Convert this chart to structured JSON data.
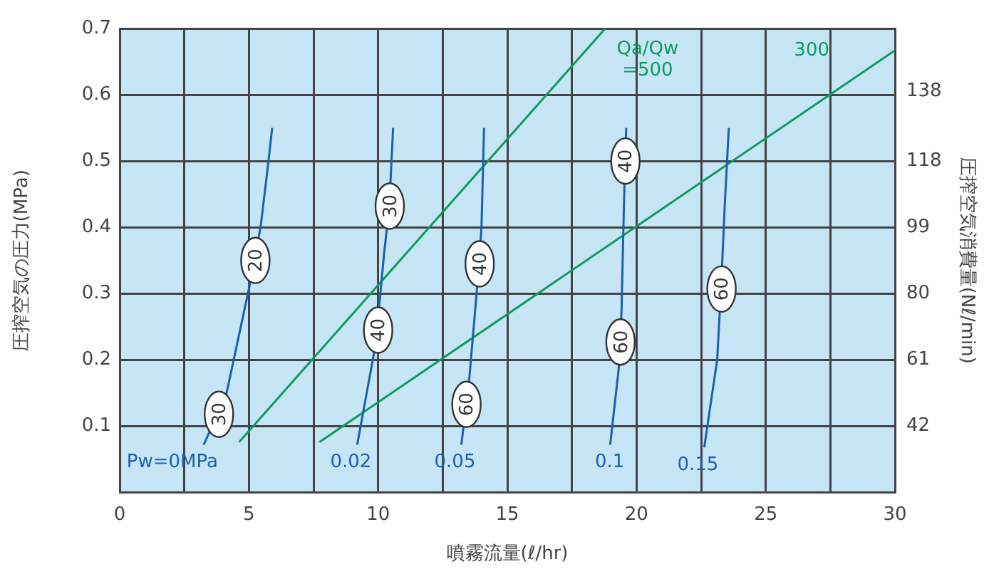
{
  "chart_data": {
    "type": "line",
    "xlabel": "噴霧流量(ℓ/hr)",
    "ylabel": "圧搾空気の圧力(MPa)",
    "y2label": "圧搾空気消費量(Nℓ/min)",
    "xlim": [
      0,
      30
    ],
    "xticks": [
      0,
      {
        "value": 2.5,
        "label": null
      },
      5,
      {
        "value": 7.5,
        "label": null
      },
      10,
      {
        "value": 12.5,
        "label": null
      },
      15,
      {
        "value": 17.5,
        "label": null
      },
      20,
      {
        "value": 22.5,
        "label": null
      },
      25,
      {
        "value": 27.5,
        "label": null
      },
      30
    ],
    "ylim": [
      0,
      0.7
    ],
    "yticks": [
      {
        "value": 0,
        "label": null
      },
      0.1,
      0.2,
      0.3,
      0.4,
      0.5,
      0.6,
      0.7
    ],
    "y2lim": [
      23,
      156
    ],
    "y2ticks": [
      42,
      61,
      80,
      99,
      118,
      138
    ],
    "grid": true,
    "legend": false,
    "marker": "none",
    "line_style": "solid",
    "series": [
      {
        "name": "Pw=0MPa",
        "color": "#1a5fb4",
        "x": [
          3.25,
          4.13,
          5.02,
          5.45,
          5.71,
          5.9
        ],
        "values": [
          0.072,
          0.149,
          0.311,
          0.4,
          0.484,
          0.55
        ]
      },
      {
        "name": "0.02",
        "color": "#1a5fb4",
        "x": [
          9.19,
          9.84,
          10.03,
          10.23,
          10.43,
          10.58
        ],
        "values": [
          0.072,
          0.21,
          0.276,
          0.36,
          0.43,
          0.55
        ]
      },
      {
        "name": "0.05",
        "color": "#1a5fb4",
        "x": [
          13.22,
          13.52,
          13.81,
          14.0,
          14.1
        ],
        "values": [
          0.072,
          0.168,
          0.3,
          0.4,
          0.55
        ]
      },
      {
        "name": "0.1",
        "color": "#1a5fb4",
        "x": [
          18.98,
          19.32,
          19.42,
          19.52,
          19.6
        ],
        "values": [
          0.072,
          0.19,
          0.276,
          0.446,
          0.55
        ]
      },
      {
        "name": "0.15",
        "color": "#1a5fb4",
        "x": [
          22.62,
          23.12,
          23.27,
          23.41,
          23.57
        ],
        "values": [
          0.068,
          0.2,
          0.307,
          0.43,
          0.55
        ]
      },
      {
        "name": "Qa/Qw =500",
        "color": "#0f9a5a",
        "x": [
          4.62,
          18.79
        ],
        "values": [
          0.076,
          0.7
        ]
      },
      {
        "name": "300",
        "color": "#0f9a5a",
        "x": [
          7.73,
          30
        ],
        "values": [
          0.076,
          0.667
        ]
      }
    ],
    "annotations": [
      {
        "text": "30",
        "x": 3.84,
        "y": 0.118
      },
      {
        "text": "20",
        "x": 5.25,
        "y": 0.35
      },
      {
        "text": "40",
        "x": 10.0,
        "y": 0.245
      },
      {
        "text": "30",
        "x": 10.45,
        "y": 0.432
      },
      {
        "text": "60",
        "x": 13.42,
        "y": 0.133
      },
      {
        "text": "40",
        "x": 13.93,
        "y": 0.345
      },
      {
        "text": "60",
        "x": 19.38,
        "y": 0.227
      },
      {
        "text": "40",
        "x": 19.57,
        "y": 0.5
      },
      {
        "text": "60",
        "x": 23.29,
        "y": 0.307
      }
    ]
  }
}
